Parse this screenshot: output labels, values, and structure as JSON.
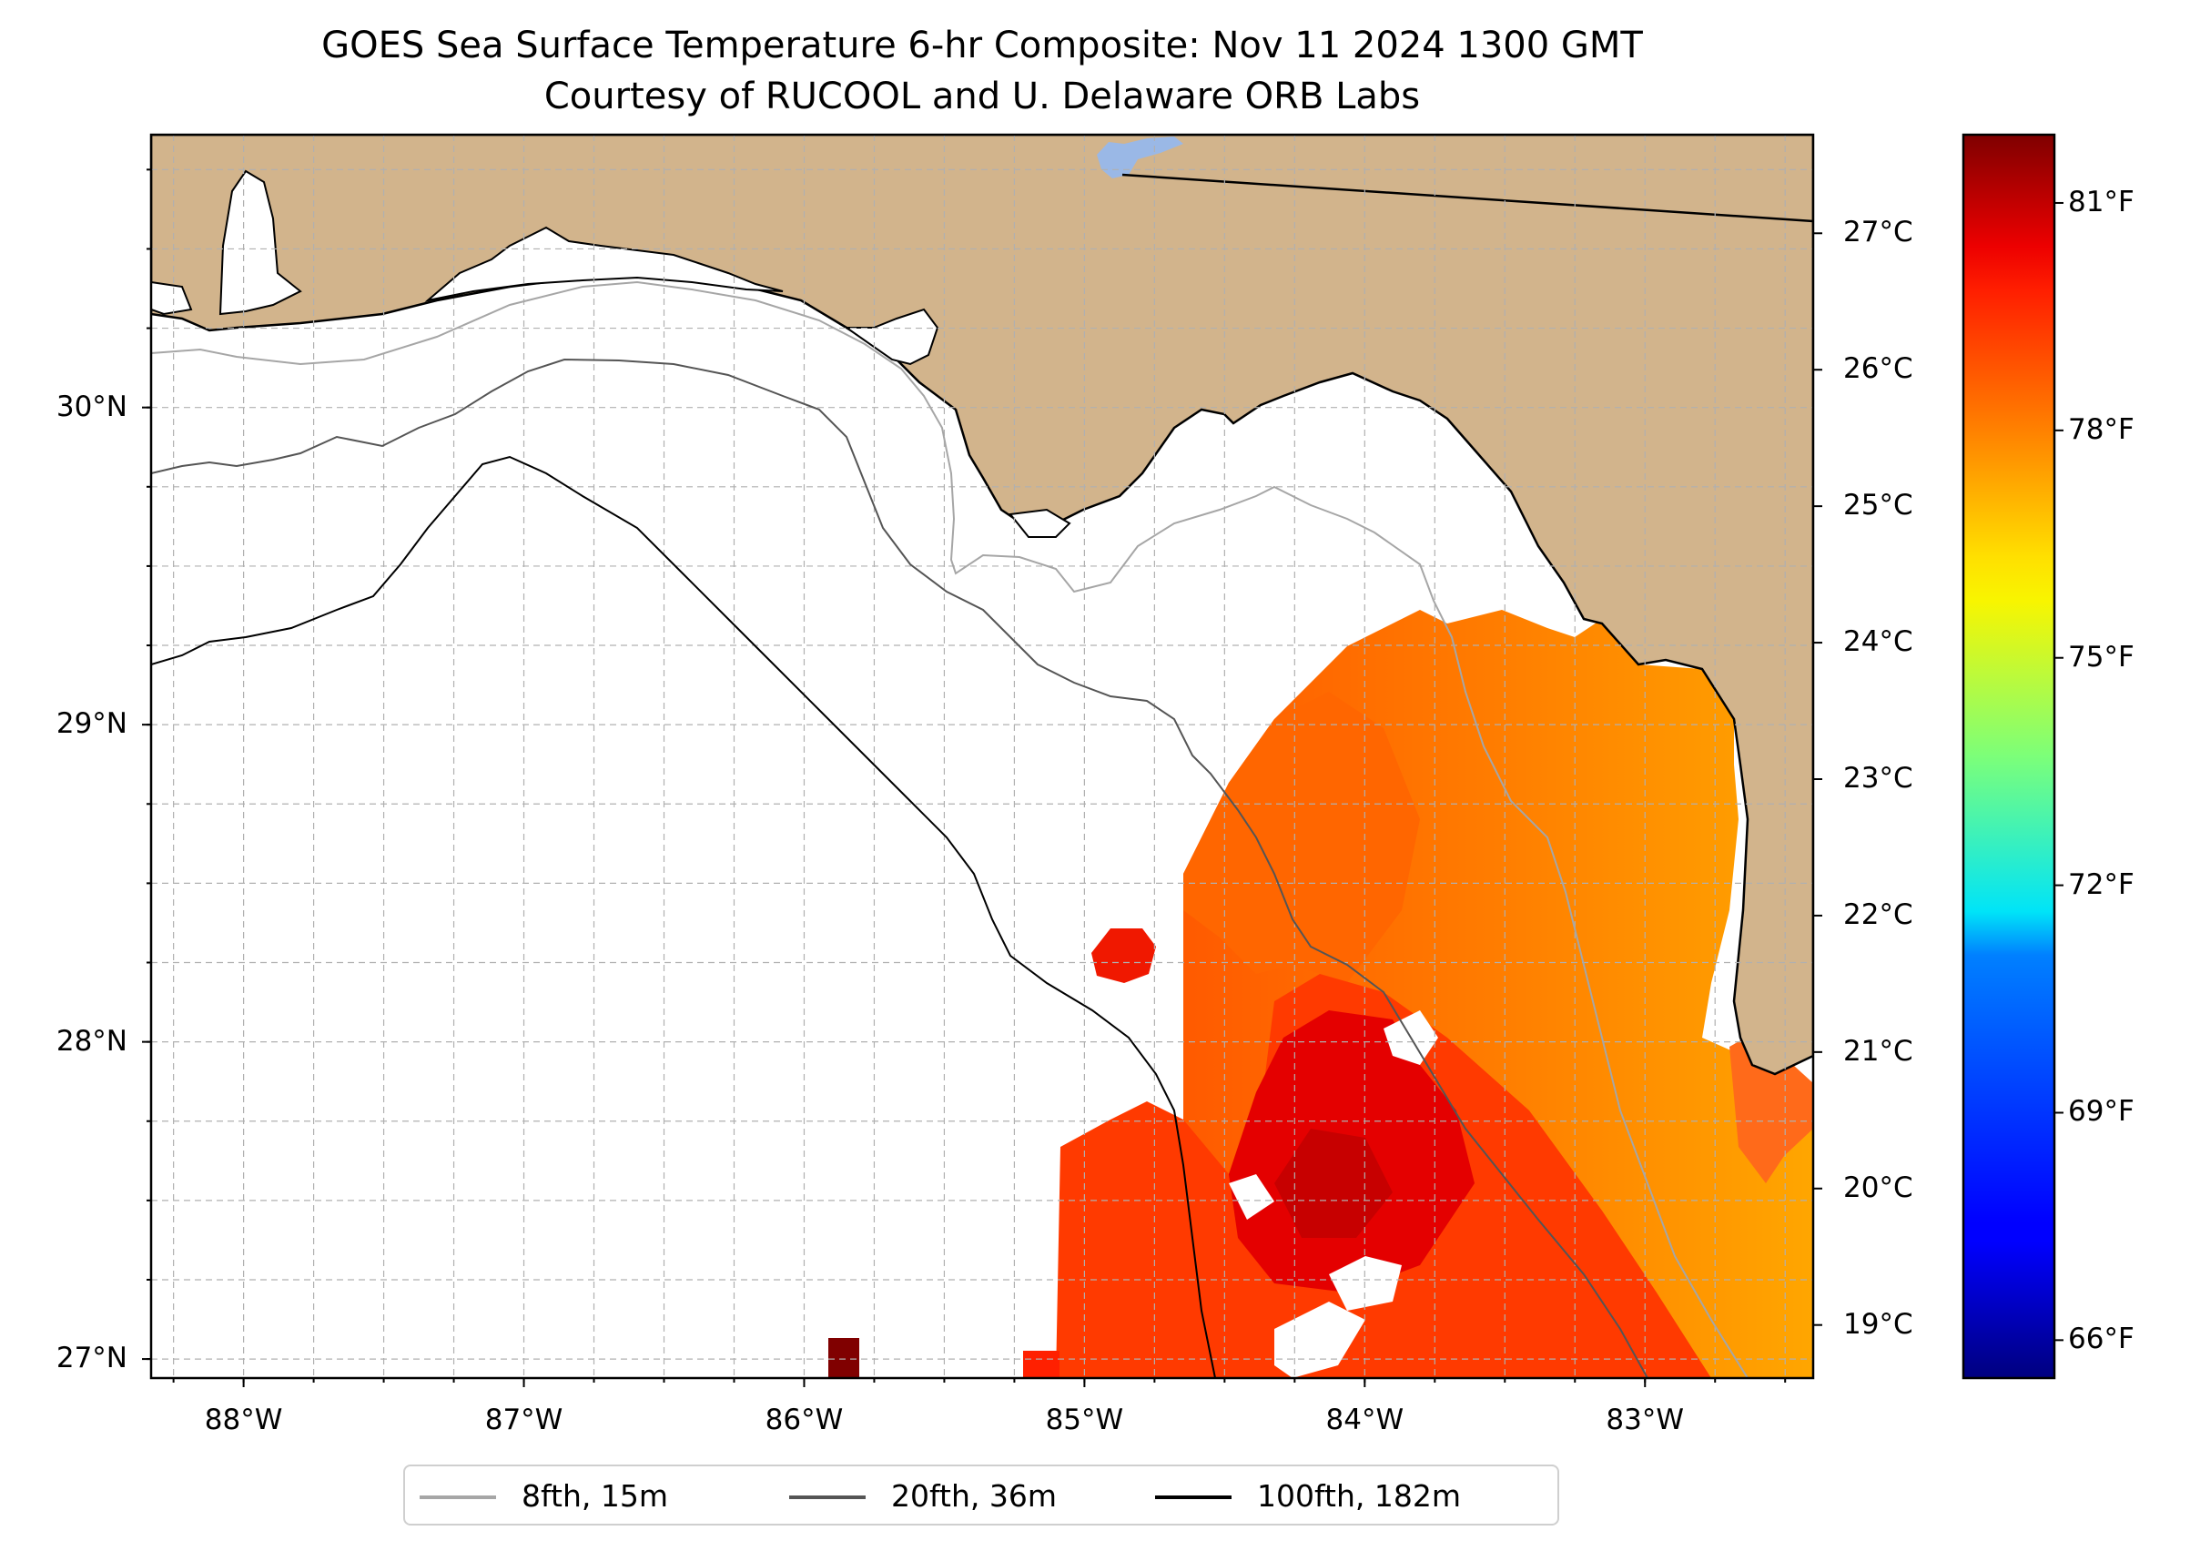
{
  "title": {
    "line1": "GOES Sea Surface Temperature 6-hr Composite: Nov 11 2024 1300 GMT",
    "line2": "Courtesy of RUCOOL and U. Delaware ORB Labs"
  },
  "axes": {
    "lat_ticks": [
      {
        "value": 30,
        "label": "30°N"
      },
      {
        "value": 29,
        "label": "29°N"
      },
      {
        "value": 28,
        "label": "28°N"
      },
      {
        "value": 27,
        "label": "27°N"
      }
    ],
    "lon_ticks": [
      {
        "value": -88,
        "label": "88°W"
      },
      {
        "value": -87,
        "label": "87°W"
      },
      {
        "value": -86,
        "label": "86°W"
      },
      {
        "value": -85,
        "label": "85°W"
      },
      {
        "value": -84,
        "label": "84°W"
      },
      {
        "value": -83,
        "label": "83°W"
      }
    ],
    "lat_range": [
      26.94,
      30.86
    ],
    "lon_range": [
      -88.33,
      -82.4
    ]
  },
  "colorbar": {
    "colormap": "jet",
    "celsius_labels": [
      {
        "value": 27,
        "label": "27°C"
      },
      {
        "value": 26,
        "label": "26°C"
      },
      {
        "value": 25,
        "label": "25°C"
      },
      {
        "value": 24,
        "label": "24°C"
      },
      {
        "value": 23,
        "label": "23°C"
      },
      {
        "value": 22,
        "label": "22°C"
      },
      {
        "value": 21,
        "label": "21°C"
      },
      {
        "value": 20,
        "label": "20°C"
      },
      {
        "value": 19,
        "label": "19°C"
      }
    ],
    "fahrenheit_labels": [
      {
        "value": 81,
        "label": "81°F"
      },
      {
        "value": 78,
        "label": "78°F"
      },
      {
        "value": 75,
        "label": "75°F"
      },
      {
        "value": 72,
        "label": "72°F"
      },
      {
        "value": 69,
        "label": "69°F"
      },
      {
        "value": 66,
        "label": "66°F"
      }
    ],
    "range_f": [
      65.5,
      81.9
    ]
  },
  "legend": {
    "items": [
      {
        "label": "8fth, 15m",
        "color": "#a6a6a6"
      },
      {
        "label": "20fth, 36m",
        "color": "#555555"
      },
      {
        "label": "100fth, 182m",
        "color": "#000000"
      }
    ]
  },
  "colors": {
    "land": "#d2b48c",
    "lake": "#9ab8e6",
    "grid": "#b0b0b0"
  }
}
